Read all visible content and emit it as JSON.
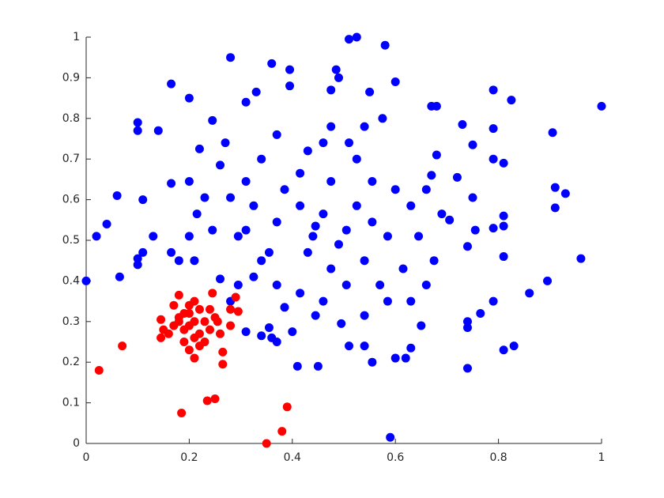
{
  "chart_data": {
    "type": "scatter",
    "series": [
      {
        "color": "#0000ff",
        "x": [
          0,
          0.02,
          0.04,
          0.06,
          0.065,
          0.1,
          0.1,
          0.11,
          0.1,
          0.1,
          0.11,
          0.13,
          0.14,
          0.165,
          0.2,
          0.165,
          0.165,
          0.18,
          0.2,
          0.28,
          0.36,
          0.395,
          0.51,
          0.525,
          0.58,
          0.6,
          0.59,
          1.0,
          0.96,
          0.905,
          0.91,
          0.93,
          0.91,
          0.895,
          0.86,
          0.825,
          0.79,
          0.79,
          0.79,
          0.81,
          0.81,
          0.81,
          0.79,
          0.81,
          0.81,
          0.83,
          0.79,
          0.765,
          0.74,
          0.74,
          0.74,
          0.74,
          0.755,
          0.75,
          0.75,
          0.73,
          0.68,
          0.67,
          0.72,
          0.705,
          0.68,
          0.65,
          0.63,
          0.62,
          0.6,
          0.555,
          0.51,
          0.54,
          0.45,
          0.41,
          0.355,
          0.36,
          0.37,
          0.34,
          0.31,
          0.26,
          0.21,
          0.245,
          0.22,
          0.27,
          0.31,
          0.33,
          0.395,
          0.475,
          0.49,
          0.485,
          0.55,
          0.575,
          0.67,
          0.445,
          0.44,
          0.46,
          0.49,
          0.415,
          0.385,
          0.37,
          0.355,
          0.325,
          0.525,
          0.555,
          0.585,
          0.54,
          0.505,
          0.46,
          0.415,
          0.385,
          0.295,
          0.28,
          0.31,
          0.26,
          0.34,
          0.43,
          0.46,
          0.475,
          0.525,
          0.555,
          0.6,
          0.63,
          0.645,
          0.615,
          0.585,
          0.54,
          0.495,
          0.445,
          0.4,
          0.37,
          0.34,
          0.31,
          0.245,
          0.23,
          0.2,
          0.215,
          0.28,
          0.295,
          0.66,
          0.69,
          0.675,
          0.66,
          0.63,
          0.57,
          0.475,
          0.43,
          0.475,
          0.415,
          0.51,
          0.54,
          0.37,
          0.325,
          0.505
        ],
        "values": [
          0.4,
          0.51,
          0.54,
          0.61,
          0.41,
          0.79,
          0.77,
          0.6,
          0.44,
          0.455,
          0.47,
          0.51,
          0.77,
          0.885,
          0.85,
          0.64,
          0.47,
          0.45,
          0.51,
          0.95,
          0.935,
          0.92,
          0.995,
          1.0,
          0.98,
          0.89,
          0.015,
          0.83,
          0.455,
          0.765,
          0.63,
          0.615,
          0.58,
          0.4,
          0.37,
          0.845,
          0.87,
          0.775,
          0.7,
          0.69,
          0.56,
          0.535,
          0.53,
          0.46,
          0.23,
          0.24,
          0.35,
          0.32,
          0.485,
          0.285,
          0.3,
          0.185,
          0.525,
          0.605,
          0.735,
          0.785,
          0.83,
          0.66,
          0.655,
          0.55,
          0.71,
          0.29,
          0.235,
          0.21,
          0.21,
          0.2,
          0.24,
          0.24,
          0.19,
          0.19,
          0.285,
          0.26,
          0.25,
          0.265,
          0.275,
          0.405,
          0.45,
          0.795,
          0.725,
          0.74,
          0.84,
          0.865,
          0.88,
          0.87,
          0.9,
          0.92,
          0.865,
          0.8,
          0.83,
          0.535,
          0.51,
          0.565,
          0.49,
          0.585,
          0.625,
          0.545,
          0.47,
          0.41,
          0.585,
          0.545,
          0.51,
          0.45,
          0.39,
          0.35,
          0.37,
          0.335,
          0.51,
          0.605,
          0.645,
          0.685,
          0.7,
          0.72,
          0.74,
          0.78,
          0.7,
          0.645,
          0.625,
          0.585,
          0.51,
          0.43,
          0.35,
          0.315,
          0.295,
          0.315,
          0.275,
          0.39,
          0.45,
          0.525,
          0.525,
          0.605,
          0.645,
          0.565,
          0.35,
          0.39,
          0.625,
          0.565,
          0.45,
          0.39,
          0.35,
          0.39,
          0.43,
          0.47,
          0.645,
          0.665,
          0.74,
          0.78,
          0.76,
          0.585,
          0.525
        ]
      },
      {
        "color": "#ff0000",
        "x": [
          0.025,
          0.07,
          0.185,
          0.235,
          0.25,
          0.35,
          0.38,
          0.39,
          0.265,
          0.21,
          0.29,
          0.28,
          0.295,
          0.28,
          0.245,
          0.18,
          0.145,
          0.145,
          0.265,
          0.2,
          0.21,
          0.19,
          0.22,
          0.18,
          0.23,
          0.2,
          0.17,
          0.24,
          0.21,
          0.19,
          0.22,
          0.25,
          0.16,
          0.2,
          0.23,
          0.18,
          0.21,
          0.26,
          0.19,
          0.22,
          0.17,
          0.24,
          0.2,
          0.15,
          0.255
        ],
        "values": [
          0.18,
          0.24,
          0.075,
          0.105,
          0.11,
          0.0,
          0.03,
          0.09,
          0.195,
          0.21,
          0.36,
          0.33,
          0.325,
          0.29,
          0.37,
          0.365,
          0.305,
          0.26,
          0.225,
          0.29,
          0.3,
          0.28,
          0.27,
          0.31,
          0.3,
          0.32,
          0.29,
          0.28,
          0.26,
          0.25,
          0.33,
          0.31,
          0.27,
          0.34,
          0.25,
          0.3,
          0.35,
          0.27,
          0.32,
          0.24,
          0.34,
          0.33,
          0.23,
          0.28,
          0.3
        ]
      }
    ],
    "xlim": [
      0,
      1
    ],
    "xticks": [
      0,
      0.2,
      0.4,
      0.6,
      0.8,
      1
    ],
    "ylim": [
      0,
      1
    ],
    "yticks": [
      0,
      0.1,
      0.2,
      0.3,
      0.4,
      0.5,
      0.6,
      0.7,
      0.8,
      0.9,
      1
    ]
  }
}
